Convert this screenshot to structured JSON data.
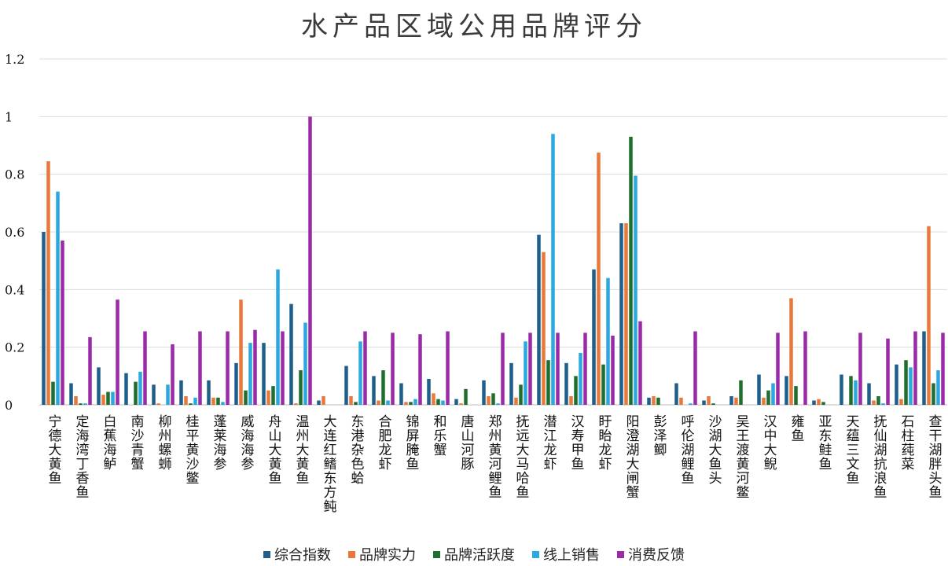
{
  "chart_data": {
    "type": "bar",
    "title": "水产品区域公用品牌评分",
    "xlabel": "",
    "ylabel": "",
    "ylim": [
      0,
      1.2
    ],
    "yticks": [
      "0",
      "0.2",
      "0.4",
      "0.6",
      "0.8",
      "1",
      "1.2"
    ],
    "grid": true,
    "legend_position": "bottom",
    "categories": [
      "宁德大黄鱼",
      "定海湾丁香鱼",
      "白蕉海鲈",
      "南沙青蟹",
      "柳州螺蛳",
      "桂平黄沙鳖",
      "蓬莱海参",
      "威海海参",
      "舟山大黄鱼",
      "温州大黄鱼",
      "大连红鳍东方鲀",
      "东港杂色蛤",
      "合肥龙虾",
      "锦屏腌鱼",
      "和乐蟹",
      "唐山河豚",
      "郑州黄河鲤鱼",
      "抚远大马哈鱼",
      "潜江龙虾",
      "汉寿甲鱼",
      "盱眙龙虾",
      "阳澄湖大闸蟹",
      "彭泽鲫",
      "呼伦湖鲤鱼",
      "沙湖大鱼头",
      "吴王渡黄河鳖",
      "汉中大鲵",
      "雍鱼",
      "亚东鲑鱼",
      "天蕴三文鱼",
      "抚仙湖抗浪鱼",
      "石柱莼菜",
      "查干湖胖头鱼"
    ],
    "series": [
      {
        "name": "综合指数",
        "color": "#1f5f8b",
        "values": [
          0.6,
          0.075,
          0.13,
          0.11,
          0.07,
          0.085,
          0.085,
          0.145,
          0.215,
          0.35,
          0.015,
          0.135,
          0.1,
          0.075,
          0.09,
          0.02,
          0.085,
          0.145,
          0.59,
          0.145,
          0.47,
          0.63,
          0.025,
          0.075,
          0.015,
          0.03,
          0.105,
          0.1,
          0.015,
          0.105,
          0.075,
          0.14,
          0.255
        ]
      },
      {
        "name": "品牌实力",
        "color": "#e8793a",
        "values": [
          0.845,
          0.03,
          0.035,
          0.0,
          0.005,
          0.03,
          0.025,
          0.365,
          0.05,
          0.005,
          0.03,
          0.03,
          0.015,
          0.01,
          0.04,
          0.005,
          0.03,
          0.025,
          0.53,
          0.03,
          0.875,
          0.63,
          0.03,
          0.025,
          0.03,
          0.025,
          0.025,
          0.37,
          0.02,
          0.0,
          0.015,
          0.02,
          0.62
        ]
      },
      {
        "name": "品牌活跃度",
        "color": "#1e6e2e",
        "values": [
          0.08,
          0.005,
          0.045,
          0.08,
          0.0,
          0.005,
          0.025,
          0.05,
          0.065,
          0.12,
          0.0,
          0.01,
          0.12,
          0.01,
          0.02,
          0.055,
          0.04,
          0.07,
          0.155,
          0.1,
          0.14,
          0.93,
          0.025,
          0.0,
          0.005,
          0.085,
          0.05,
          0.065,
          0.01,
          0.1,
          0.03,
          0.155,
          0.075
        ]
      },
      {
        "name": "线上销售",
        "color": "#2aa8e0",
        "values": [
          0.74,
          0.005,
          0.045,
          0.115,
          0.07,
          0.025,
          0.01,
          0.215,
          0.47,
          0.285,
          0.0,
          0.22,
          0.015,
          0.02,
          0.015,
          0.0,
          0.005,
          0.22,
          0.94,
          0.18,
          0.44,
          0.795,
          0.0,
          0.005,
          0.0,
          0.0,
          0.075,
          0.0,
          0.0,
          0.085,
          0.005,
          0.13,
          0.12
        ]
      },
      {
        "name": "消费反馈",
        "color": "#9b2aa8",
        "values": [
          0.57,
          0.235,
          0.365,
          0.255,
          0.21,
          0.255,
          0.255,
          0.26,
          0.255,
          1.0,
          0.0,
          0.255,
          0.25,
          0.245,
          0.255,
          0.0,
          0.25,
          0.25,
          0.25,
          0.25,
          0.24,
          0.29,
          0.0,
          0.255,
          0.0,
          0.0,
          0.25,
          0.255,
          0.0,
          0.25,
          0.23,
          0.255,
          0.25
        ]
      }
    ]
  }
}
